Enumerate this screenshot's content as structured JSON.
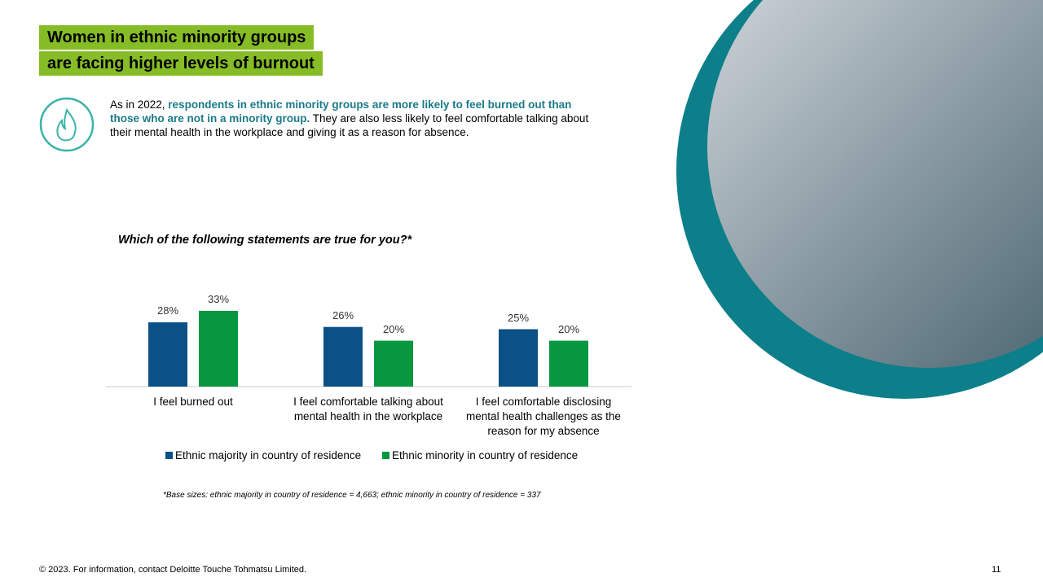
{
  "title": "Women in ethnic minority groups are facing higher levels of burnout",
  "intro": {
    "parts": [
      "As in 2022, ",
      "respondents in ethnic minority groups are more likely to feel burned out than those who are not in a minority group.",
      " They are also less likely to feel comfortable talking about their mental health in the workplace and giving it as a reason for absence."
    ]
  },
  "chart_data": {
    "type": "bar",
    "title": "Which of the following statements are true for you?*",
    "categories": [
      "I feel burned out",
      "I feel comfortable talking about mental health in the workplace",
      "I feel comfortable disclosing mental health challenges as the reason for my absence"
    ],
    "series": [
      {
        "name": "Ethnic majority in country of residence",
        "color": "#0b5086",
        "values": [
          28,
          26,
          25
        ],
        "value_labels": [
          "28%",
          "26%",
          "25%"
        ]
      },
      {
        "name": "Ethnic minority in country of residence",
        "color": "#07973f",
        "values": [
          33,
          20,
          20
        ],
        "value_labels": [
          "33%",
          "20%",
          "20%"
        ]
      }
    ],
    "footnote": "*Base sizes: ethnic majority in country of residence = 4,663; ethnic minority in country of residence = 337"
  },
  "footer": "© 2023. For information, contact Deloitte Touche Tohmatsu Limited.",
  "page_number": 11
}
